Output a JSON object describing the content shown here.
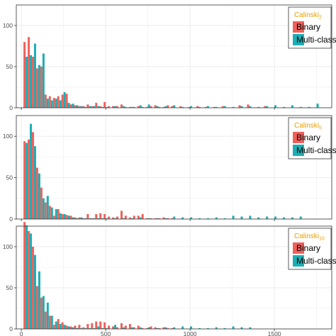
{
  "colors": {
    "binary": "#F0605A",
    "multiclass": "#1AAFB5",
    "legend_title": "#E69F00",
    "grid": "#EBEBEB",
    "panel_border": "#333333"
  },
  "legend": {
    "binary_label": "Binary",
    "multiclass_label": "Multi-class"
  },
  "chart_data": [
    {
      "type": "bar",
      "legend_title_main": "Calinski",
      "legend_title_sub": "2",
      "xlim": [
        -30,
        1840
      ],
      "ylim": [
        0,
        125
      ],
      "x_ticks": [
        0,
        500,
        1000,
        1500
      ],
      "y_ticks": [
        0,
        50,
        100
      ],
      "grid": true,
      "legend_position": "top-right",
      "bin_width": 25,
      "series": [
        {
          "name": "Binary",
          "x": [
            25,
            50,
            75,
            100,
            125,
            150,
            175,
            200,
            225,
            250,
            275,
            300,
            325,
            350,
            375,
            400,
            425,
            450,
            475,
            500,
            525,
            550,
            575,
            600,
            625,
            650,
            675,
            700,
            725,
            750,
            775,
            800,
            825,
            850,
            875,
            900,
            950,
            1000,
            1050,
            1100,
            1150,
            1200,
            1300,
            1350,
            1450
          ],
          "values": [
            80,
            86,
            62,
            48,
            50,
            16,
            14,
            12,
            14,
            16,
            17,
            4,
            3,
            2,
            2,
            4,
            2,
            6,
            2,
            7,
            2,
            2,
            2,
            4,
            1,
            1,
            1,
            2,
            1,
            1,
            2,
            3,
            1,
            1,
            3,
            2,
            2,
            1,
            2,
            1,
            1,
            2,
            3,
            4,
            2
          ]
        },
        {
          "name": "Multi-class",
          "x": [
            25,
            50,
            75,
            100,
            125,
            150,
            175,
            200,
            225,
            250,
            275,
            300,
            325,
            350,
            375,
            400,
            425,
            450,
            475,
            500,
            550,
            600,
            650,
            700,
            750,
            800,
            850,
            900,
            950,
            1000,
            1050,
            1100,
            1150,
            1200,
            1250,
            1300,
            1350,
            1400,
            1450,
            1500,
            1550,
            1600,
            1650,
            1700,
            1750
          ],
          "values": [
            62,
            64,
            78,
            52,
            66,
            11,
            9,
            11,
            9,
            19,
            6,
            5,
            3,
            2,
            1,
            2,
            2,
            2,
            1,
            1,
            2,
            2,
            1,
            3,
            4,
            2,
            2,
            3,
            1,
            2,
            1,
            2,
            1,
            2,
            1,
            2,
            2,
            1,
            2,
            3,
            1,
            3,
            1,
            1,
            5
          ]
        }
      ]
    },
    {
      "type": "bar",
      "legend_title_main": "Calinski",
      "legend_title_sub": "5",
      "xlim": [
        -30,
        1840
      ],
      "ylim": [
        0,
        125
      ],
      "x_ticks": [
        0,
        500,
        1000,
        1500
      ],
      "y_ticks": [
        0,
        50,
        100
      ],
      "grid": true,
      "legend_position": "top-right",
      "bin_width": 25,
      "series": [
        {
          "name": "Binary",
          "x": [
            25,
            50,
            75,
            100,
            125,
            150,
            175,
            200,
            225,
            250,
            275,
            300,
            325,
            350,
            375,
            400,
            425,
            450,
            475,
            500,
            525,
            550,
            575,
            600,
            625,
            650,
            675,
            700,
            725,
            750,
            775,
            800,
            825,
            850,
            875,
            900
          ],
          "values": [
            94,
            96,
            105,
            62,
            38,
            20,
            16,
            4,
            12,
            6,
            5,
            4,
            2,
            2,
            1,
            6,
            1,
            6,
            7,
            6,
            3,
            2,
            3,
            10,
            4,
            2,
            4,
            4,
            6,
            1,
            1,
            1,
            1,
            2,
            1,
            1
          ]
        },
        {
          "name": "Multi-class",
          "x": [
            25,
            50,
            75,
            100,
            125,
            150,
            175,
            200,
            225,
            250,
            275,
            300,
            325,
            350,
            375,
            400,
            425,
            450,
            475,
            500,
            550,
            600,
            650,
            700,
            750,
            800,
            850,
            900,
            950,
            1000,
            1050,
            1100,
            1150,
            1200,
            1250,
            1300,
            1350,
            1400,
            1450,
            1500,
            1550,
            1600,
            1650
          ],
          "values": [
            92,
            115,
            88,
            55,
            25,
            28,
            14,
            12,
            7,
            6,
            4,
            2,
            1,
            2,
            1,
            1,
            1,
            1,
            1,
            1,
            1,
            1,
            1,
            2,
            1,
            1,
            1,
            3,
            2,
            2,
            1,
            1,
            2,
            1,
            4,
            3,
            4,
            2,
            3,
            3,
            2,
            2,
            3
          ]
        }
      ]
    },
    {
      "type": "bar",
      "legend_title_main": "Calinski",
      "legend_title_sub": "10",
      "xlim": [
        -30,
        1840
      ],
      "ylim": [
        0,
        125
      ],
      "x_ticks": [
        0,
        500,
        1000,
        1500
      ],
      "y_ticks": [
        0,
        50,
        100
      ],
      "grid": true,
      "legend_position": "top-right",
      "bin_width": 25,
      "series": [
        {
          "name": "Binary",
          "x": [
            25,
            50,
            75,
            100,
            125,
            150,
            175,
            200,
            225,
            250,
            275,
            300,
            325,
            350,
            375,
            400,
            425,
            450,
            475,
            500,
            525,
            550,
            575,
            600,
            625,
            650,
            675,
            700,
            725,
            750,
            775,
            800,
            825,
            850,
            875,
            900
          ],
          "values": [
            130,
            119,
            100,
            52,
            38,
            21,
            16,
            5,
            12,
            8,
            4,
            3,
            4,
            5,
            2,
            6,
            7,
            9,
            9,
            8,
            4,
            3,
            2,
            7,
            4,
            6,
            2,
            4,
            1,
            1,
            3,
            2,
            1,
            2,
            1,
            1
          ]
        },
        {
          "name": "Multi-class",
          "x": [
            25,
            50,
            75,
            100,
            125,
            150,
            175,
            200,
            225,
            250,
            275,
            300,
            325,
            350,
            375,
            400,
            425,
            450,
            475,
            500,
            550,
            600,
            650,
            700,
            750,
            800,
            850,
            900,
            950,
            1000,
            1050,
            1100,
            1150,
            1200,
            1250,
            1300,
            1350
          ],
          "values": [
            126,
            116,
            90,
            70,
            40,
            32,
            16,
            9,
            6,
            5,
            3,
            2,
            1,
            1,
            1,
            1,
            1,
            3,
            1,
            1,
            5,
            2,
            2,
            2,
            2,
            1,
            2,
            2,
            3,
            3,
            1,
            1,
            2,
            1,
            3,
            2,
            2
          ]
        }
      ]
    }
  ]
}
